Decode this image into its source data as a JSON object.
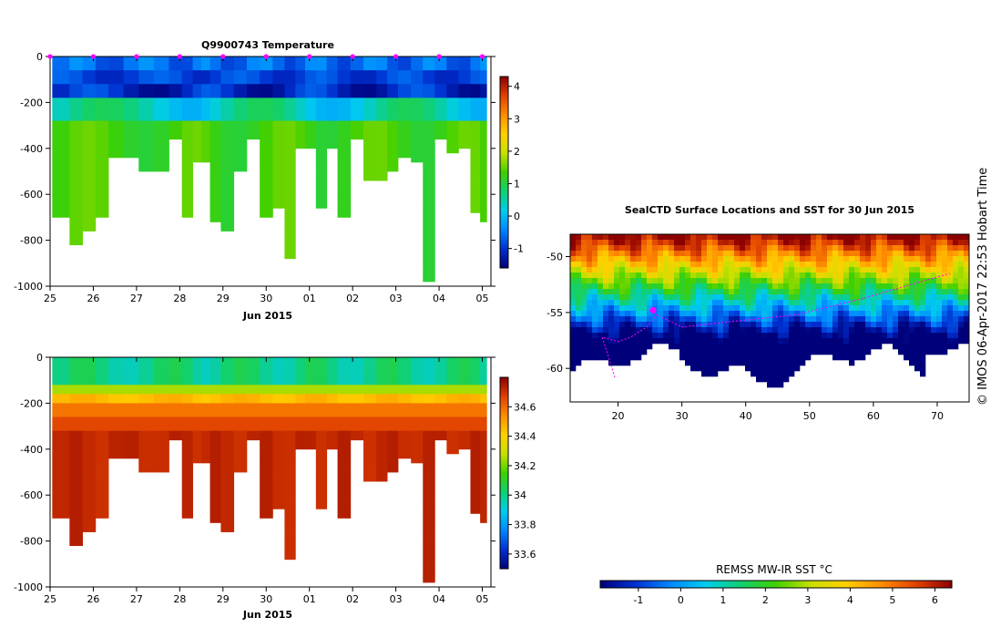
{
  "credit": "© IMOS 06-Apr-2017 22:53 Hobart Time",
  "chart_data": [
    {
      "id": "temperature",
      "type": "heatmap",
      "title": "Q9900743  Temperature",
      "xlabel": "Jun 2015",
      "x_tick_labels": [
        "25",
        "26",
        "27",
        "28",
        "29",
        "30",
        "01",
        "02",
        "03",
        "04",
        "05"
      ],
      "x_tick_days": [
        0,
        1,
        2,
        3,
        4,
        5,
        6,
        7,
        8,
        9,
        10
      ],
      "y_ticks": [
        0,
        -200,
        -400,
        -600,
        -800,
        -1000
      ],
      "ylim": [
        -1000,
        0
      ],
      "colorbar": {
        "ticks": [
          -1,
          0,
          1,
          2,
          3,
          4
        ],
        "range": [
          -1.6,
          4.3
        ],
        "colors": [
          "#00007a",
          "#0030d0",
          "#0088ff",
          "#00ccee",
          "#10d070",
          "#40d000",
          "#c8e000",
          "#ffd000",
          "#ff8c00",
          "#e04000",
          "#8c0000"
        ]
      },
      "profiles": [
        {
          "day": 0.3,
          "max_depth": 700
        },
        {
          "day": 0.6,
          "max_depth": 810
        },
        {
          "day": 0.9,
          "max_depth": 750
        },
        {
          "day": 1.2,
          "max_depth": 700
        },
        {
          "day": 1.5,
          "max_depth": 440
        },
        {
          "day": 1.9,
          "max_depth": 440
        },
        {
          "day": 2.2,
          "max_depth": 500
        },
        {
          "day": 2.6,
          "max_depth": 500
        },
        {
          "day": 2.9,
          "max_depth": 350
        },
        {
          "day": 3.2,
          "max_depth": 700
        },
        {
          "day": 3.4,
          "max_depth": 460
        },
        {
          "day": 3.6,
          "max_depth": 460
        },
        {
          "day": 3.8,
          "max_depth": 720
        },
        {
          "day": 4.1,
          "max_depth": 760
        },
        {
          "day": 4.4,
          "max_depth": 500
        },
        {
          "day": 4.7,
          "max_depth": 350
        },
        {
          "day": 5.0,
          "max_depth": 700
        },
        {
          "day": 5.3,
          "max_depth": 660
        },
        {
          "day": 5.55,
          "max_depth": 870
        },
        {
          "day": 5.8,
          "max_depth": 400
        },
        {
          "day": 6.0,
          "max_depth": 400
        },
        {
          "day": 6.3,
          "max_depth": 660
        },
        {
          "day": 6.5,
          "max_depth": 400
        },
        {
          "day": 6.8,
          "max_depth": 700
        },
        {
          "day": 7.1,
          "max_depth": 360
        },
        {
          "day": 7.4,
          "max_depth": 540
        },
        {
          "day": 7.7,
          "max_depth": 540
        },
        {
          "day": 7.9,
          "max_depth": 500
        },
        {
          "day": 8.2,
          "max_depth": 440
        },
        {
          "day": 8.5,
          "max_depth": 450
        },
        {
          "day": 8.75,
          "max_depth": 980
        },
        {
          "day": 9.05,
          "max_depth": 360
        },
        {
          "day": 9.3,
          "max_depth": 420
        },
        {
          "day": 9.6,
          "max_depth": 390
        },
        {
          "day": 9.85,
          "max_depth": 680
        },
        {
          "day": 10.05,
          "max_depth": 720
        }
      ]
    },
    {
      "id": "salinity",
      "type": "heatmap",
      "title": "",
      "xlabel": "Jun 2015",
      "x_tick_labels": [
        "25",
        "26",
        "27",
        "28",
        "29",
        "30",
        "01",
        "02",
        "03",
        "04",
        "05"
      ],
      "x_tick_days": [
        0,
        1,
        2,
        3,
        4,
        5,
        6,
        7,
        8,
        9,
        10
      ],
      "y_ticks": [
        0,
        -200,
        -400,
        -600,
        -800,
        -1000
      ],
      "ylim": [
        -1000,
        0
      ],
      "colorbar": {
        "ticks": [
          33.6,
          33.8,
          34,
          34.2,
          34.4,
          34.6
        ],
        "range": [
          33.5,
          34.8
        ],
        "colors": [
          "#00007a",
          "#0030d0",
          "#0088ff",
          "#00ccee",
          "#10d070",
          "#40d000",
          "#c8e000",
          "#ffd000",
          "#ff8c00",
          "#e04000",
          "#8c0000"
        ]
      },
      "profiles": "same as temperature"
    },
    {
      "id": "sst-map",
      "type": "heatmap",
      "title": "SealCTD Surface Locations and SST for 30 Jun 2015",
      "x_ticks": [
        20,
        30,
        40,
        50,
        60,
        70
      ],
      "x_tick_labels": [
        "20",
        "30",
        "40",
        "50",
        "60",
        "70"
      ],
      "xlim": [
        12.5,
        75
      ],
      "y_ticks": [
        -50,
        -55,
        -60
      ],
      "y_tick_labels": [
        "-50",
        "-55",
        "-60"
      ],
      "ylim": [
        -63,
        -48
      ],
      "track_color": "#ff00ff",
      "colorbar": {
        "label": "REMSS MW-IR SST °C",
        "ticks": [
          -1,
          0,
          1,
          2,
          3,
          4,
          5,
          6
        ],
        "tick_labels": [
          "-1",
          "0",
          "1",
          "2",
          "3",
          "4",
          "5",
          "6"
        ],
        "range": [
          -1.9,
          6.4
        ],
        "colors": [
          "#00007a",
          "#0030d0",
          "#0088ff",
          "#00ccee",
          "#10d070",
          "#40d000",
          "#c8e000",
          "#ffd000",
          "#ff8c00",
          "#e04000",
          "#8c0000"
        ]
      }
    }
  ]
}
